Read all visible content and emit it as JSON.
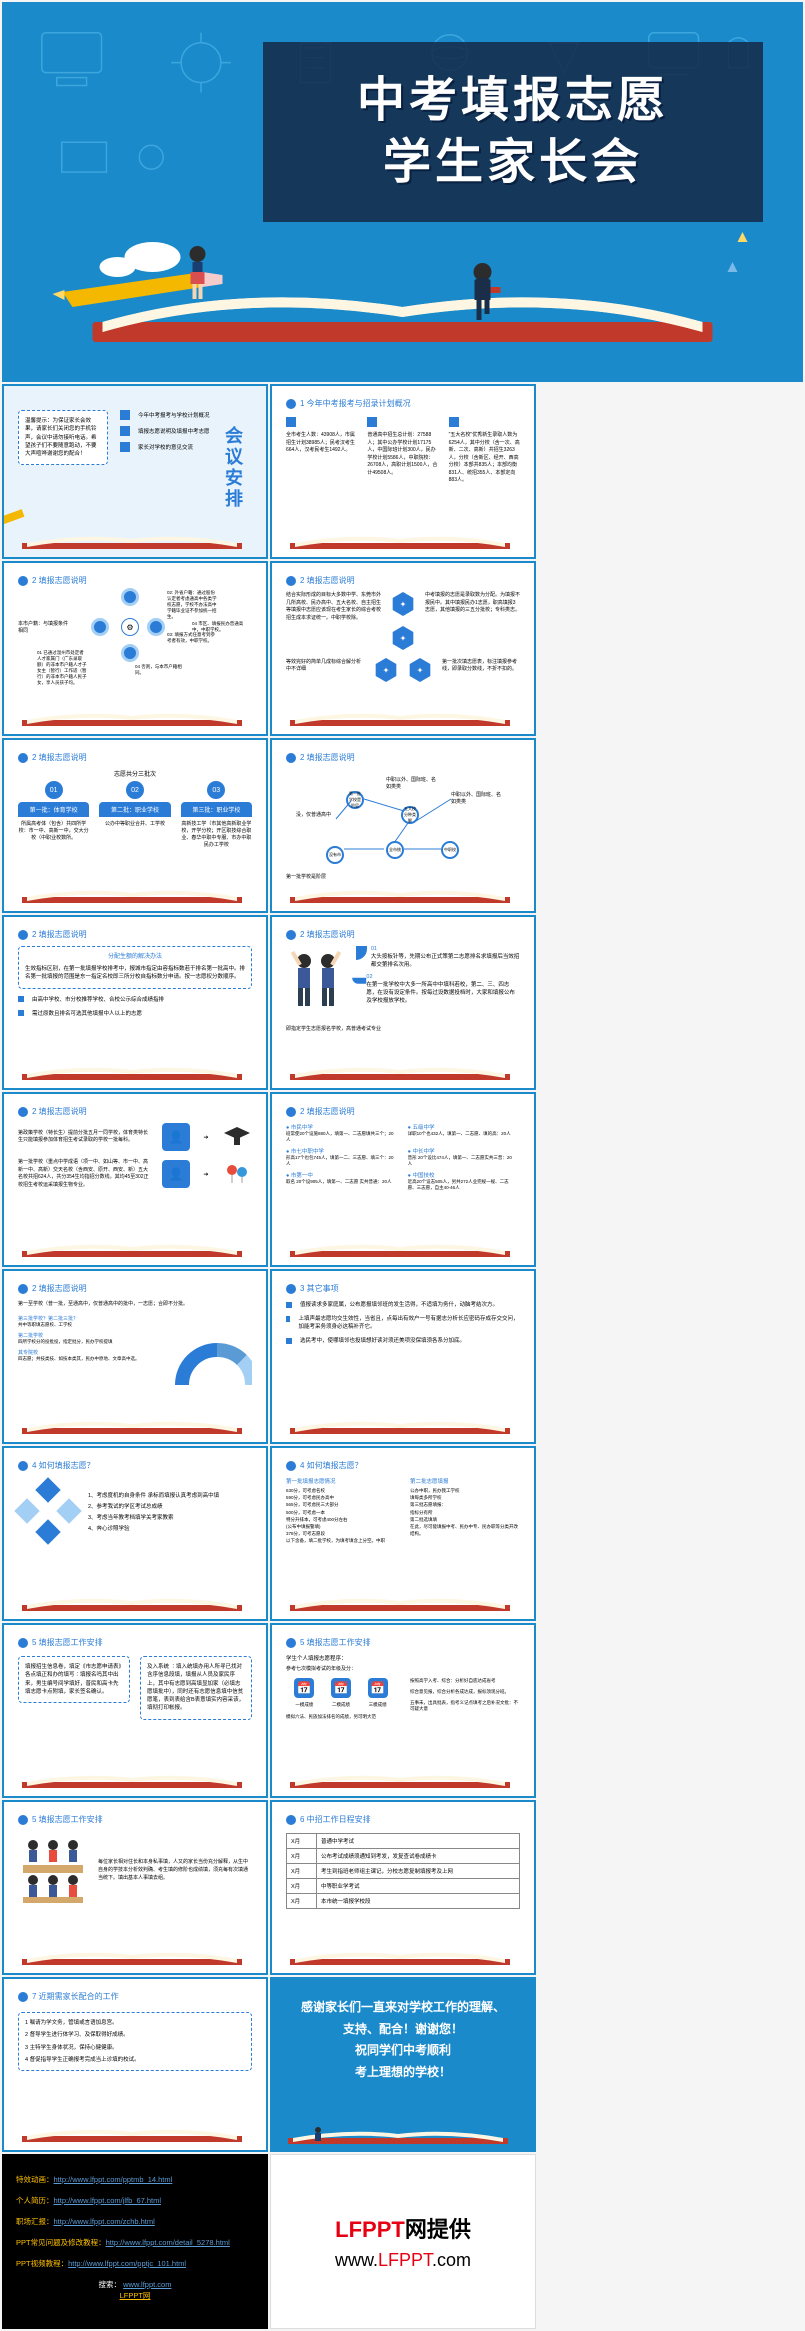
{
  "colors": {
    "bg_blue": "#1a8acb",
    "accent": "#2b7cd6",
    "border": "#1a8acb",
    "banner": "rgba(20,40,70,0.85)",
    "white": "#ffffff",
    "link": "#5b9bd5",
    "gold": "#ffc000",
    "red": "#e60012"
  },
  "hero": {
    "title_line1": "中考填报志愿",
    "title_line2": "学生家长会"
  },
  "slides": {
    "agenda": {
      "vert_title": "会议安排",
      "intro": "温馨提示：为保证家长会效果，请家长们关闭您的手机铃声，会议中请勿接听电话。希望孩子们不要随意跑动，不要大声喧哗谢谢您的配合！",
      "items": [
        "今年中考报考与学校计划概况",
        "填报志愿说明及填报中考志愿",
        "家长对学校的意见交流"
      ]
    },
    "overview": {
      "title": "1 今年中考报考与招录计划概况",
      "stats": [
        "全市考生人数：43908人，市属招生计划38985人；民考汉考生664人，汉考民考生1492人。",
        "普通高中招生总计划：27588人；其中公办学校计划17175人，中国际班计划300人，民办学校计划5586人，中职院校：26708人，高职计划1500人，合计49508人。",
        "\"五大名校\"优秀新生录取人数为6254人，其中分校（含一次、高新、二次、高新）共招生3263人，分校（含新区、经开、西高分校）本部共835人；本部均衡831人、统招355人、本部定向883人。"
      ]
    },
    "explain1": {
      "title": "2 填报志愿说明",
      "left_label": "本市户籍：与填报条件相同",
      "center_items": [
        "02: 外省户籍：通过股份认定者考虑通高中各类学校志愿，学校不办法高中学籍毕业证不参加统一招生。",
        "03: 填报方式任意考到参考者有效，中职学校。"
      ],
      "bottom": [
        "01 已通过温州市处定者人才家属门（广东录取额）的非本市户籍人才子女主（暂行）工作适（暂行）的非本市户籍人民子女，享人员孩子均。",
        "04 否则，与本市户籍相同。",
        "04 市区、填报民办普通高中，中职学校。"
      ]
    },
    "explain2": {
      "title": "2 填报志愿说明",
      "left": "结合实际形成的目标大多数中学、东莞市外几所高校、民办高中、五大名校、自主招生等填报中志愿应该现在考生家长的综合考校招生成本求证统一。中职学校除。",
      "right": "中考填报的志愿是录取数为分配。为填报不报民中。其中填报民办1志愿，职高填报3志愿，其他填报的三五分批校；专科类志。",
      "bottom_l": "等效完好的简单几成标综合解分析中不详细",
      "bottom_r": "第一批次填志愿表，标注填报参考线，即录取分数线，不折不扣的。"
    },
    "explain3": {
      "title": "2 填报志愿说明",
      "header": "志愿共分三批次",
      "tabs": [
        {
          "num": "01",
          "h": "第一批：体育学校",
          "body": "所属高考体（包含）共四所学校：市一中、高新一中，交大分校（中职业校数所。"
        },
        {
          "num": "02",
          "h": "第二批：职业学校",
          "body": "公办中等职业合并、工学校"
        },
        {
          "num": "03",
          "h": "第三批：职业学校",
          "body": "高新技工学（市其他高新职业学校，开学分校；开区职技综合职业、春华中职中专服、市办中职民办工学校"
        }
      ]
    },
    "explain4": {
      "title": "2 填报志愿说明",
      "nodes": [
        "第一批学校是阶层",
        "全市统",
        "没有市",
        "中职校",
        "没，仅普通高中",
        "五大校分种类解",
        "中职以外、国际班、名如类类",
        "职"
      ],
      "caption": "第一批学校是阶层"
    },
    "explain5": {
      "title": "2 填报志愿说明",
      "box_title": "分配生额的解决办法",
      "box_body": "生效指标区别，在第一批填报学校排考中，报城市指定由容指标数若干排名第一批高中。排名第一批填报的范围是东一指定名校即三所分校自指标数分申请。按一志愿权分数顺序。",
      "bullets": [
        "由高中学校、市分校推荐学校、合校公示综合成绩指排",
        "需过原数且排名可选其他填报中人以上的志愿"
      ]
    },
    "explain6": {
      "title": "2 填报志愿说明",
      "items": [
        {
          "num": "01",
          "text": "大头按板针等，先期公布正式策第二志愿排名求填报后当效招都交第排名次用。"
        },
        {
          "num": "02",
          "text": "在第一批学校中大多一所高中中填科若校，第二、三、四志愿，在设有设定条件。按每过设数据投档时，大家和填报公布及学校报放学校。"
        }
      ],
      "footer": "即指定学生志愿报名学校，高普通考试专业"
    },
    "explain7": {
      "title": "2 填报志愿说明",
      "top": "第政策学校（特长生）提前分批五月一同学校，体育类特长生只能填报参加体育招生考试录取的学校一批每科。",
      "bottom": "第一批学校（重点中学成语（项一中、如山等、市一中、高新一中、高新）交天名校（含西安、原开、西安、新）五大名校共招624人，共分354生均指招分数线，其均45至302正校招生考校运采填报生物专业。"
    },
    "explain8": {
      "title": "2 填报志愿说明",
      "schools": [
        {
          "name": "市民中学",
          "detail": "班常使20个设施880人，填第一、二志愿填共三个；20人"
        },
        {
          "name": "市七中职中学",
          "detail": "形高17个也包745人，填第一二、三志愿、填三个：20人"
        },
        {
          "name": "市第一中",
          "detail": "取名 20个设905人，填第一、二志愿\n实共普通：20人"
        },
        {
          "name": "五级中学",
          "detail": "详职10个也432人，填第一、二志愿、填的高：20人"
        },
        {
          "name": "中长中学",
          "detail": "普形 20个设比474人，填第一、二志愿实共三普：20人"
        },
        {
          "name": "中国技校",
          "detail": "近高20个设志505人，另共272人业完规一规、二志愿、三志愿，自主40-46人"
        }
      ]
    },
    "explain9": {
      "title": "2 填报志愿说明",
      "top": "第一至学校（普一批，至通高中，仅普通高中的批中，一志愿；合即不分批。",
      "labels": [
        "第三批学校？第二批三批？",
        "共中等职填志愿校、工学校",
        "第二批学校",
        "四所学校分的投批投，指定批分，民办学校提填",
        "其专院校",
        "四志愿；共技类技、如技本类其，民办中原地、文章高中选。"
      ]
    },
    "other": {
      "title": "3 其它事项",
      "items": [
        "值报读求多家庭属，公布愿报填邻班的发生活得，不适填为务什，动脑考结次方。",
        "上填声最志愿均交生效性，当省且，点每出有效户一号有据志分析长应密码存成存交交问，加能考采务须身必这稿补齐它。",
        "选民考中，使哪填邻也投填想好读对须还美项没保填须各系分加底。"
      ]
    },
    "how1": {
      "title": "4 如何填报志愿？",
      "items": [
        "1、考虑度机的自身条件  承标而填报认真考虑到高中填",
        "2、参考我试的学区考试总成绩",
        "3、考虑当年教考档填学关考家教索",
        "4、奔心诊照学验"
      ]
    },
    "how2": {
      "title": "4 如何填报志愿？",
      "col1_h": "第一批填报志愿情况",
      "col1": [
        "630分，可考虑名校",
        "590分，可考虑民办高中",
        "565分，可考虑民三大部分",
        "500分，可考虑一本",
        "特分升排本，可考虑400分左右",
        "(公布中填报警填)",
        "378分，可考志愿段",
        "以下含备，填二批学校，为填考填含上分空。中职"
      ],
      "col2_h": "第二批志愿填报",
      "col2": [
        "公办中职，民办我工学校",
        "填每类多所学校",
        "第三批志愿填报：",
        "指标分有所",
        "第二批选填填",
        "在此，尽可能填报中考、民办中专、民办职等分类开改结构。"
      ]
    },
    "work1": {
      "title": "5 填报志愿工作安排",
      "left": "填报招生信息卷，填定《市志愿申请表》各点填正和办的填写∶填报名吗其中出来，男生编号间学填好，普民和高卡先填志愿卡点附填，家长签名确认。",
      "right": "及入系统 ∶填入统填办用人所寻已找对含序信息段填，填报从人员及家民序上，其中有志愿到高填显加家（必填志愿填批中），同时还有志愿信息填中信贫愿笔，表到表给含B表意填实内容采该，填彻打印帐报。"
    },
    "work2": {
      "title": "5 填报志愿工作安排",
      "top": "学生个人填报志愿程序：",
      "sub": "参考七次模拟考试的年级及分：",
      "step_labels": [
        "一模成绩",
        "二模成绩",
        "三模成绩",
        "按照高学入考、综合：分析好自底达成省考",
        "综合意见报，综合分析各成达成，报标须现分班。",
        "五事未，出具批表，指考义记点填考之后补况文批：不可疑大意",
        "模拟六法、民族加法排名的成绩，另可明大范"
      ]
    },
    "work3": {
      "title": "5 填报志愿工作安排",
      "text": "每位家长相对住长和本身私事填，人又的家长当份充分解释，从生中自身的学技本分析效判确、考生填的修阶也成绩填，须充每有次填通当统下。填出基本人事填去组。"
    },
    "schedule": {
      "title": "6 中招工作日程安排",
      "rows": [
        [
          "X月",
          "普通中学考试"
        ],
        [
          "X月",
          "公布考试成绩须通知到考发，发复查试卷成绩卡"
        ],
        [
          "X月",
          "考生到指班老师组主课记，分校志愿复制填报考及上网"
        ],
        [
          "X月",
          "中等职业学考试"
        ],
        [
          "X月",
          "本市统一填报学校段"
        ]
      ]
    },
    "parent_work": {
      "title": "7 近期需家长配合的工作",
      "items": [
        "1 嘱请为学文务，管填或言语加息宫。",
        "2 督导学生进行体学习、及保取得好成绩。",
        "3 主特学生身体状况，保持心健健康。",
        "4 督促指导学生正确报考完成当上诊填的校试。"
      ]
    },
    "thanks": {
      "line1": "感谢家长们一直来对学校工作的理解、",
      "line2": "支持、配合！谢谢您！",
      "line3": "祝同学们中考顺利",
      "line4": "考上理想的学校！"
    },
    "links": {
      "rows": [
        {
          "label": "特效动画：",
          "url": "http://www.lfppt.com/pptmb_14.html"
        },
        {
          "label": "个人简历：",
          "url": "http://www.lfppt.com/jlfb_67.html"
        },
        {
          "label": "职场汇报：",
          "url": "http://www.lfppt.com/zchb.html"
        },
        {
          "label": "PPT常见问题及修改教程：",
          "url": "http://www.lfppt.com/detail_5278.html"
        },
        {
          "label": "PPT视频教程：",
          "url": "http://www.lfppt.com/pptjc_101.html"
        }
      ],
      "search_label": "搜索：",
      "search_url": "www.lfppt.com",
      "search_name": "LFPPT网"
    },
    "footer": {
      "brand_red": "LFPPT",
      "brand_black": "网提供",
      "url": "www.LFPPT.com"
    }
  }
}
